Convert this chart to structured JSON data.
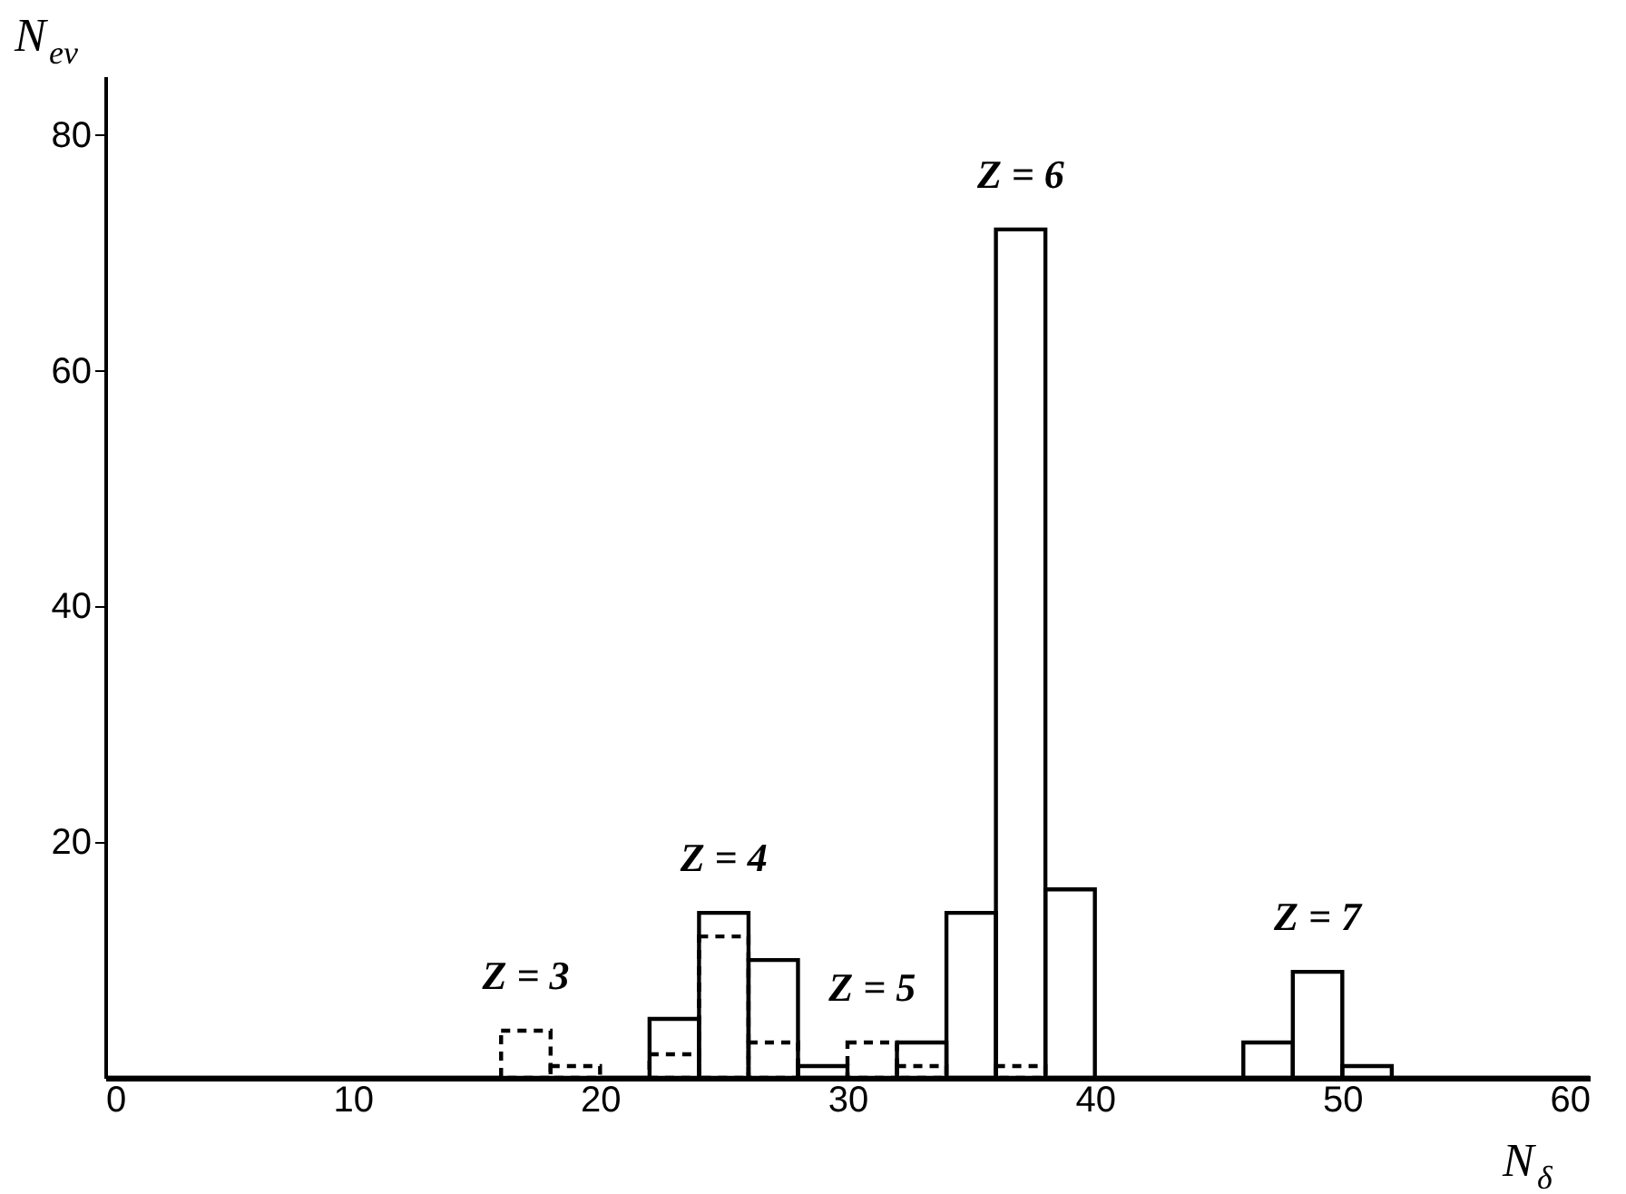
{
  "chart_data": {
    "type": "histogram",
    "xlabel": "N$_{δ}$",
    "ylabel": "N$_{ev}$",
    "bins": [
      0,
      2,
      4,
      6,
      8,
      10,
      12,
      14,
      16,
      18,
      20,
      22,
      24,
      26,
      28,
      30,
      32,
      34,
      36,
      38,
      40,
      42,
      44,
      46,
      48,
      50,
      52,
      54,
      56,
      58,
      60
    ],
    "series": [
      {
        "color": "#000000",
        "line_style": "solid",
        "values": [
          0,
          0,
          0,
          0,
          0,
          0,
          0,
          0,
          0,
          0,
          0,
          5,
          14,
          10,
          1,
          0,
          3,
          14,
          72,
          16,
          0,
          0,
          0,
          3,
          9,
          1,
          0,
          0,
          0,
          0
        ]
      },
      {
        "color": "#000000",
        "line_style": "dashed",
        "values": [
          0,
          0,
          0,
          0,
          0,
          0,
          0,
          0,
          4,
          1,
          0,
          2,
          12,
          3,
          0,
          3,
          1,
          0,
          1,
          0,
          0,
          0,
          0,
          0,
          0,
          0,
          0,
          0,
          0,
          0
        ]
      }
    ],
    "annotations": [
      {
        "text": "Z = 3",
        "x": 17,
        "y": 4
      },
      {
        "text": "Z = 4",
        "x": 25,
        "y": 14
      },
      {
        "text": "Z = 5",
        "x": 31,
        "y": 3
      },
      {
        "text": "Z = 6",
        "x": 37,
        "y": 72
      },
      {
        "text": "Z = 7",
        "x": 49,
        "y": 9
      }
    ],
    "xlim": [
      0,
      60
    ],
    "xticks": [
      0,
      10,
      20,
      30,
      40,
      50,
      60
    ],
    "ylim": [
      0,
      85
    ],
    "yticks": [
      20,
      40,
      60,
      80
    ],
    "grid": false
  }
}
